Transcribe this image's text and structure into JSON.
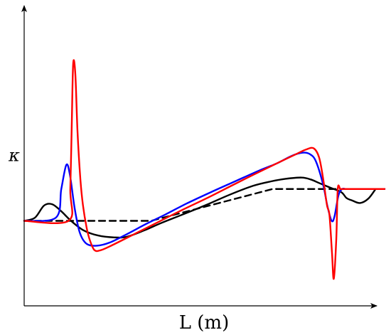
{
  "chart_data": {
    "type": "line",
    "title": "",
    "xlabel": "L (m)",
    "ylabel": "κ",
    "xlim": [
      0,
      100
    ],
    "ylim": [
      -10,
      30
    ],
    "grid": false,
    "legend": "none",
    "series": [
      {
        "style": "dashed",
        "color": "#000000",
        "x": [
          0,
          11.4,
          35.2,
          68.9,
          100
        ],
        "y": [
          0,
          0,
          0,
          5,
          5
        ]
      },
      {
        "style": "solid",
        "color": "#000000",
        "x": [
          0,
          3,
          5.5,
          7.8,
          10.3,
          13,
          16.5,
          20.5,
          25,
          28.5,
          33.3,
          38.2,
          44,
          50.5,
          57,
          63.5,
          68.5,
          72.5,
          77,
          79.5,
          82,
          85,
          88,
          89.4,
          91,
          93.2,
          95.5,
          97.5
        ],
        "y": [
          0,
          0.5,
          2.4,
          2.6,
          1.5,
          0,
          -1.5,
          -2.3,
          -2.6,
          -2.5,
          -1.5,
          -0.3,
          1,
          2.5,
          4.1,
          5.5,
          6.2,
          6.6,
          6.8,
          6.5,
          5.9,
          5.2,
          4.5,
          3.6,
          3.2,
          2.8,
          3.5,
          5
        ]
      },
      {
        "style": "solid",
        "color": "#0000ff",
        "x": [
          0,
          8.8,
          10.3,
          11.7,
          12.7,
          14,
          15.4,
          17.3,
          20.2,
          23.8,
          28.8,
          33.8,
          39.2,
          45,
          51.8,
          58.5,
          65.2,
          70,
          74.2,
          77.2,
          79.2,
          80.9,
          82.9,
          84.1,
          85.3,
          86.1,
          87.2,
          88.2,
          89.2,
          90.3,
          91.4,
          100
        ],
        "y": [
          0,
          0.5,
          5,
          8.8,
          7.2,
          2,
          -1.8,
          -3.6,
          -3.9,
          -3.4,
          -2,
          -0.5,
          1,
          2.7,
          4.5,
          6.2,
          7.9,
          9,
          10.2,
          10.7,
          10.5,
          9.4,
          5.8,
          2.4,
          0,
          0.7,
          4,
          5,
          5,
          5,
          5,
          5
        ]
      },
      {
        "style": "solid",
        "color": "#ff0000",
        "x": [
          0,
          12.3,
          12.8,
          13.2,
          13.6,
          14.2,
          14.8,
          15.6,
          16.3,
          17.3,
          18.2,
          19.5,
          21.3,
          24.5,
          30.5,
          36.8,
          43.8,
          50.8,
          57.8,
          63.8,
          70,
          75.5,
          78.2,
          80.3,
          81.8,
          82.9,
          84,
          84.7,
          85.4,
          85.9,
          86.6,
          87,
          87.7,
          88.4,
          89.8,
          92,
          95.2,
          100
        ],
        "y": [
          0,
          0,
          5,
          15,
          24.7,
          23,
          14,
          6.5,
          2.5,
          -1,
          -3,
          -4.6,
          -4.6,
          -3.8,
          -2.1,
          -0.3,
          1.7,
          3.6,
          5.6,
          7.3,
          9,
          10.5,
          11.2,
          11.4,
          10,
          6.8,
          2.5,
          0.9,
          -5,
          -9.1,
          -2.8,
          5,
          5,
          5,
          5,
          5,
          5,
          5
        ]
      }
    ]
  }
}
